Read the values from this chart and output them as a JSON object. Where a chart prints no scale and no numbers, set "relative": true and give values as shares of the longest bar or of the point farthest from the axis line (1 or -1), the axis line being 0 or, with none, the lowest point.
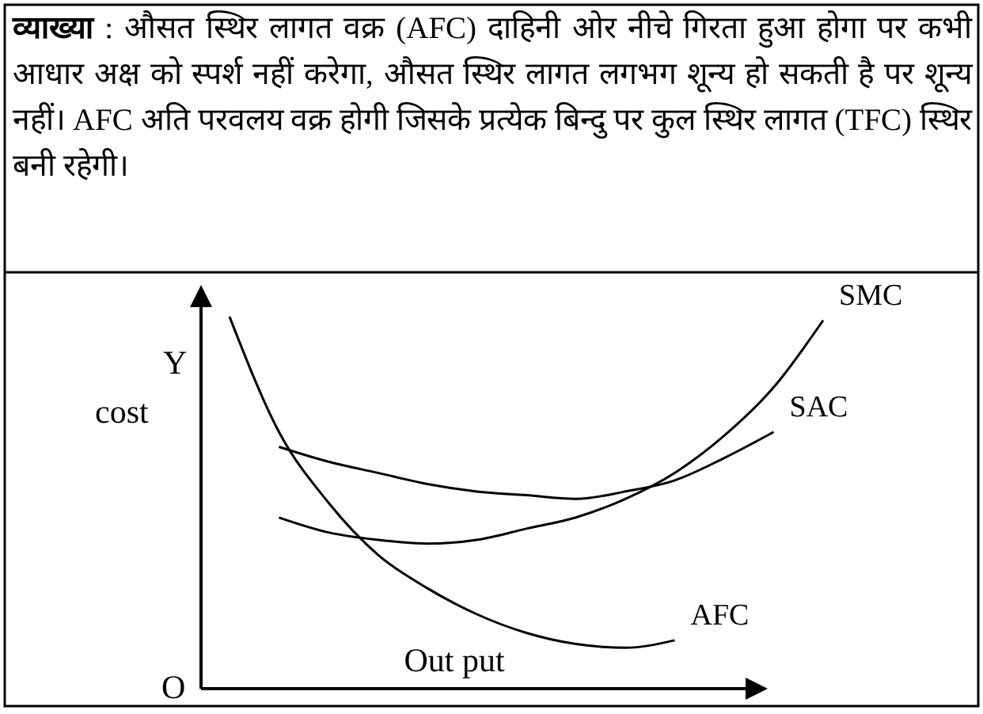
{
  "chart_data": {
    "type": "line",
    "relative": true,
    "title": "व्याख्या",
    "subtitle": ": औसत स्थिर लागत वक्र (AFC) दाहिनी ओर नीचे गिरता हुआ होगा पर कभी आधार अक्ष को स्पर्श नहीं करेगा, औसत स्थिर लागत लगभग शून्य हो सकती है पर शून्य नहीं। AFC अति परवलय वक्र होगी जिसके प्रत्येक बिन्दु पर कुल स्थिर लागत (TFC) स्थिर बनी रहेगी।",
    "xlabel": "Out put",
    "ylabel": "cost",
    "annotations": [
      "Y",
      "O"
    ],
    "categories": [
      null,
      null,
      null,
      null,
      null,
      null,
      null,
      null,
      null,
      null,
      null,
      null,
      null
    ],
    "series": [
      {
        "name": "SMC",
        "color": "#000000",
        "values": [
          null,
          0.46,
          0.42,
          0.4,
          0.39,
          0.4,
          0.43,
          0.46,
          0.51,
          0.58,
          0.68,
          0.81,
          0.99
        ]
      },
      {
        "name": "SAC",
        "color": "#000000",
        "values": [
          null,
          0.65,
          0.61,
          0.58,
          0.55,
          0.53,
          0.52,
          0.51,
          0.53,
          0.56,
          0.62,
          0.69,
          null
        ]
      },
      {
        "name": "AFC",
        "color": "#000000",
        "values": [
          1.0,
          0.69,
          0.5,
          0.36,
          0.27,
          0.2,
          0.15,
          0.12,
          0.11,
          0.13,
          null,
          null,
          null
        ]
      }
    ],
    "marker": "none",
    "line_style": "solid"
  }
}
